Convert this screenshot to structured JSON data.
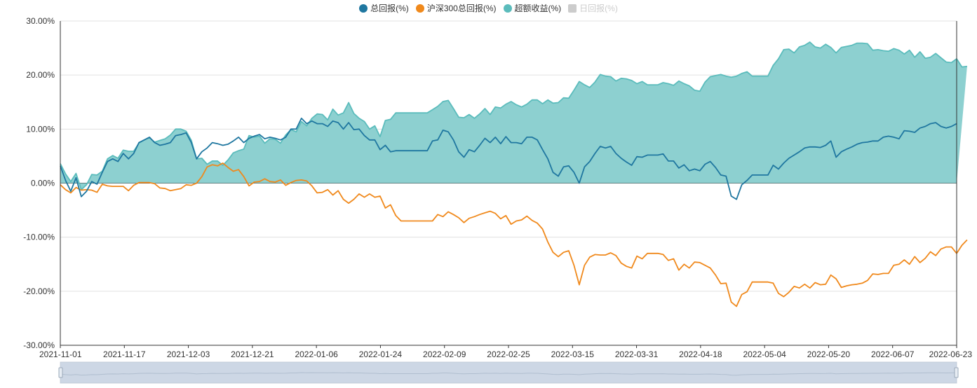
{
  "legend": [
    {
      "label": "总回报(%)",
      "color": "#1f77a0",
      "active": true
    },
    {
      "label": "沪深300总回报(%)",
      "color": "#f0891c",
      "active": true
    },
    {
      "label": "超额收益(%)",
      "color": "#5bbcbc",
      "active": true
    },
    {
      "label": "日回报(%)",
      "color": "#cccccc",
      "active": false
    }
  ],
  "colors": {
    "total": "#1f77a0",
    "hs300": "#f0891c",
    "excessLine": "#5bbcbc",
    "excessFill": "#8dd0d0"
  },
  "chart_data": {
    "type": "line",
    "y_ticks": [
      "30.00%",
      "20.00%",
      "10.00%",
      "0.00%",
      "-10.00%",
      "-20.00%",
      "-30.00%"
    ],
    "ylim": [
      -30,
      30
    ],
    "x_ticks": [
      "2021-11-01",
      "2021-11-17",
      "2021-12-03",
      "2021-12-21",
      "2022-01-06",
      "2022-01-24",
      "2022-02-09",
      "2022-02-25",
      "2022-03-15",
      "2022-03-31",
      "2022-04-18",
      "2022-05-04",
      "2022-05-20",
      "2022-06-07",
      "2022-06-23"
    ],
    "series": [
      {
        "name": "总回报(%)",
        "key": "total",
        "values": [
          3.2,
          0.5,
          -1.5,
          1.0,
          -2.5,
          -1.5,
          0.3,
          -0.2,
          2.0,
          4.0,
          4.5,
          4.0,
          5.5,
          4.5,
          5.5,
          7.5,
          8.0,
          8.5,
          7.5,
          7.0,
          7.2,
          7.5,
          8.8,
          9.0,
          9.3,
          7.5,
          4.5,
          5.8,
          6.5,
          7.5,
          7.3,
          7.0,
          7.2,
          7.8,
          8.5,
          7.5,
          8.3,
          8.7,
          9.0,
          8.2,
          8.5,
          8.3,
          8.0,
          8.5,
          10.0,
          10.0,
          12.0,
          11.0,
          11.5,
          11.0,
          11.0,
          10.5,
          11.5,
          11.2,
          10.0,
          11.2,
          9.9,
          10.0,
          8.8,
          8.0,
          8.0,
          6.2,
          7.0,
          5.8,
          6.0,
          6.0,
          6.0,
          6.0,
          6.0,
          6.0,
          6.0,
          7.8,
          8.0,
          9.8,
          9.5,
          8.0,
          5.8,
          4.8,
          6.2,
          5.8,
          7.0,
          8.3,
          7.5,
          8.5,
          7.3,
          8.6,
          7.5,
          7.5,
          7.3,
          8.5,
          8.5,
          8.0,
          6.2,
          4.5,
          2.0,
          1.3,
          3.0,
          3.2,
          2.0,
          0.0,
          3.0,
          4.0,
          5.5,
          6.8,
          6.5,
          6.8,
          5.5,
          4.6,
          3.9,
          3.3,
          4.9,
          4.8,
          5.2,
          5.2,
          5.2,
          5.4,
          4.1,
          4.1,
          2.8,
          3.4,
          2.3,
          2.6,
          2.3,
          3.5,
          4.0,
          2.9,
          1.5,
          1.3,
          -2.4,
          -3.0,
          -0.3,
          0.5,
          1.5,
          1.5,
          1.5,
          1.5,
          3.3,
          2.6,
          3.7,
          4.6,
          5.2,
          5.8,
          6.5,
          6.7,
          6.7,
          6.6,
          7.0,
          7.8,
          4.8,
          5.8,
          6.3,
          6.7,
          7.2,
          7.5,
          7.6,
          7.8,
          7.8,
          8.5,
          8.7,
          8.5,
          8.2,
          9.7,
          9.6,
          9.4,
          10.2,
          10.5,
          11.0,
          11.2,
          10.5,
          10.2,
          10.5,
          11.0
        ]
      },
      {
        "name": "沪深300总回报(%)",
        "key": "hs300",
        "values": [
          -0.3,
          -1.2,
          -1.8,
          -0.8,
          -1.3,
          -1.2,
          -1.3,
          -1.7,
          -0.2,
          -0.5,
          -0.6,
          -0.6,
          -0.6,
          -1.4,
          -0.4,
          0.1,
          0.1,
          0.1,
          -0.1,
          -0.9,
          -1.0,
          -1.4,
          -1.2,
          -1.0,
          -0.3,
          -0.4,
          0.0,
          1.2,
          3.0,
          3.4,
          3.2,
          3.7,
          2.9,
          2.2,
          2.5,
          1.2,
          -0.5,
          0.2,
          0.3,
          0.8,
          0.3,
          0.2,
          0.6,
          -0.4,
          0.1,
          0.5,
          0.6,
          0.4,
          -0.5,
          -1.8,
          -1.7,
          -1.2,
          -2.2,
          -1.4,
          -3.0,
          -3.7,
          -3.0,
          -2.0,
          -2.6,
          -2.0,
          -2.6,
          -2.4,
          -4.6,
          -4.0,
          -6.0,
          -7.0,
          -7.0,
          -7.0,
          -7.0,
          -7.0,
          -7.0,
          -7.0,
          -5.8,
          -6.2,
          -5.3,
          -5.8,
          -6.4,
          -7.3,
          -6.5,
          -6.2,
          -5.8,
          -5.5,
          -5.2,
          -5.6,
          -6.6,
          -6.0,
          -7.6,
          -7.0,
          -6.8,
          -6.1,
          -6.9,
          -7.4,
          -8.5,
          -10.9,
          -12.8,
          -13.6,
          -12.8,
          -12.5,
          -15.2,
          -18.8,
          -15.2,
          -13.7,
          -13.2,
          -13.3,
          -13.3,
          -12.9,
          -13.4,
          -14.8,
          -15.4,
          -15.7,
          -13.5,
          -14.0,
          -13.0,
          -13.0,
          -13.0,
          -13.2,
          -14.3,
          -14.0,
          -16.1,
          -15.0,
          -15.7,
          -14.6,
          -14.7,
          -15.2,
          -15.7,
          -17.0,
          -18.6,
          -18.5,
          -22.0,
          -22.8,
          -20.6,
          -20.1,
          -18.3,
          -18.3,
          -18.3,
          -18.3,
          -18.5,
          -20.4,
          -21.0,
          -20.2,
          -19.1,
          -19.4,
          -18.7,
          -19.4,
          -18.4,
          -18.8,
          -18.7,
          -17.0,
          -17.7,
          -19.3,
          -19.0,
          -18.8,
          -18.7,
          -18.5,
          -18.0,
          -16.8,
          -16.9,
          -16.7,
          -16.7,
          -15.2,
          -15.0,
          -14.2,
          -15.0,
          -13.6,
          -14.7,
          -13.9,
          -12.7,
          -13.4,
          -12.2,
          -11.8,
          -11.8,
          -13.0,
          -11.5,
          -10.5
        ]
      },
      {
        "name": "超额收益(%)",
        "key": "excess",
        "values": [
          3.6,
          1.7,
          0.3,
          1.8,
          -1.2,
          -0.3,
          1.6,
          1.5,
          2.2,
          4.5,
          5.1,
          4.6,
          6.1,
          5.9,
          5.9,
          7.4,
          8.0,
          8.4,
          7.6,
          7.9,
          8.2,
          8.9,
          10.0,
          10.0,
          9.6,
          7.9,
          4.5,
          4.6,
          3.5,
          4.1,
          4.1,
          3.3,
          4.3,
          5.6,
          6.0,
          6.3,
          8.8,
          8.5,
          8.7,
          7.4,
          8.2,
          8.1,
          7.4,
          8.9,
          9.9,
          9.5,
          11.4,
          10.6,
          12.0,
          12.8,
          12.7,
          11.7,
          13.7,
          12.6,
          13.0,
          14.9,
          12.9,
          12.0,
          11.4,
          10.0,
          10.6,
          8.6,
          11.6,
          11.8,
          13.0,
          13.0,
          13.0,
          13.0,
          13.0,
          13.0,
          13.0,
          13.6,
          14.2,
          15.1,
          15.3,
          13.8,
          12.2,
          12.1,
          12.7,
          12.0,
          12.8,
          13.8,
          12.7,
          14.1,
          13.9,
          14.6,
          15.1,
          14.5,
          14.1,
          14.6,
          15.4,
          15.4,
          14.7,
          15.4,
          14.8,
          14.9,
          15.8,
          15.7,
          17.2,
          18.8,
          18.2,
          17.7,
          18.7,
          20.1,
          19.8,
          19.7,
          18.9,
          19.4,
          19.3,
          19.0,
          18.4,
          18.8,
          18.2,
          18.2,
          18.2,
          18.6,
          18.4,
          18.1,
          18.9,
          18.4,
          18.0,
          17.2,
          17.0,
          18.7,
          19.7,
          19.9,
          20.1,
          19.8,
          19.6,
          19.8,
          20.3,
          20.6,
          19.8,
          19.8,
          19.8,
          19.8,
          21.8,
          23.0,
          24.7,
          24.8,
          24.1,
          25.2,
          25.5,
          26.1,
          25.2,
          25.0,
          25.7,
          25.1,
          24.1,
          25.1,
          25.3,
          25.5,
          25.9,
          25.9,
          25.8,
          24.6,
          24.7,
          24.5,
          24.4,
          24.9,
          24.6,
          23.9,
          24.6,
          23.3,
          24.3,
          23.1,
          23.3,
          24.0,
          23.2,
          22.4,
          22.3,
          23.0,
          21.5,
          21.6
        ]
      }
    ]
  }
}
